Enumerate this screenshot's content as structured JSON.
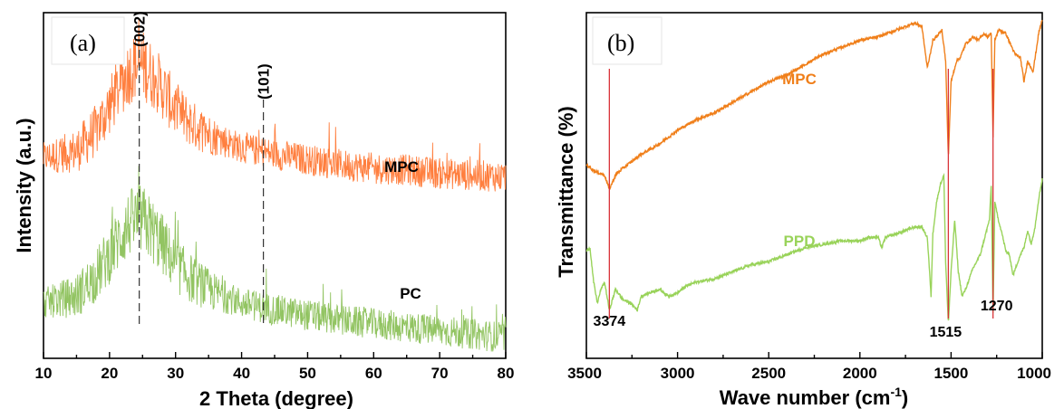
{
  "chart_data": [
    {
      "type": "line",
      "panel_label": "(a)",
      "xlabel": "2 Theta (degree)",
      "ylabel": "Intensity (a.u.)",
      "xlim": [
        10,
        80
      ],
      "xticks": [
        "10",
        "20",
        "30",
        "40",
        "50",
        "60",
        "70",
        "80"
      ],
      "yticks_shown": false,
      "peak_markers": [
        {
          "x": 24.5,
          "label": "(002)"
        },
        {
          "x": 43.3,
          "label": "(101)"
        }
      ],
      "series": [
        {
          "name": "MPC",
          "color": "#ff7f3f",
          "x": [
            10,
            15,
            18,
            20,
            22,
            23,
            24,
            25,
            26,
            28,
            30,
            33,
            36,
            40,
            45,
            50,
            55,
            60,
            65,
            70,
            75,
            80
          ],
          "y": [
            0.58,
            0.6,
            0.66,
            0.73,
            0.8,
            0.83,
            0.85,
            0.85,
            0.83,
            0.78,
            0.72,
            0.67,
            0.64,
            0.61,
            0.59,
            0.575,
            0.56,
            0.55,
            0.545,
            0.535,
            0.53,
            0.525
          ]
        },
        {
          "name": "PC",
          "color": "#92c462",
          "x": [
            10,
            15,
            18,
            20,
            22,
            23,
            24,
            25,
            26,
            28,
            30,
            33,
            36,
            40,
            45,
            50,
            55,
            60,
            65,
            70,
            75,
            80
          ],
          "y": [
            0.16,
            0.18,
            0.24,
            0.3,
            0.36,
            0.39,
            0.4,
            0.4,
            0.38,
            0.33,
            0.27,
            0.22,
            0.19,
            0.16,
            0.14,
            0.125,
            0.11,
            0.1,
            0.09,
            0.08,
            0.07,
            0.06
          ]
        }
      ]
    },
    {
      "type": "line",
      "panel_label": "(b)",
      "xlabel": "Wave number (cm",
      "xlabel_sup": "-1",
      "xlabel_close": ")",
      "ylabel": "Transmittance (%)",
      "xlim": [
        3500,
        1000
      ],
      "xticks": [
        "3500",
        "3000",
        "2500",
        "2000",
        "1500",
        "1000"
      ],
      "yticks_shown": false,
      "annotations": [
        {
          "x": 3374,
          "label": "3374"
        },
        {
          "x": 1515,
          "label": "1515"
        },
        {
          "x": 1270,
          "label": "1270"
        }
      ],
      "series": [
        {
          "name": "MPC",
          "color": "#f07f1a",
          "x": [
            3500,
            3450,
            3400,
            3374,
            3340,
            3300,
            3200,
            3100,
            3000,
            2900,
            2800,
            2700,
            2600,
            2500,
            2400,
            2300,
            2200,
            2100,
            2000,
            1900,
            1800,
            1700,
            1660,
            1630,
            1600,
            1580,
            1550,
            1530,
            1515,
            1500,
            1470,
            1450,
            1420,
            1400,
            1380,
            1350,
            1320,
            1300,
            1280,
            1270,
            1260,
            1240,
            1200,
            1150,
            1120,
            1100,
            1080,
            1050,
            1020,
            1000
          ],
          "y": [
            0.56,
            0.54,
            0.53,
            0.49,
            0.53,
            0.55,
            0.59,
            0.62,
            0.66,
            0.69,
            0.71,
            0.74,
            0.77,
            0.8,
            0.82,
            0.85,
            0.88,
            0.9,
            0.92,
            0.93,
            0.95,
            0.97,
            0.96,
            0.84,
            0.92,
            0.93,
            0.95,
            0.86,
            0.58,
            0.8,
            0.86,
            0.87,
            0.91,
            0.92,
            0.93,
            0.92,
            0.94,
            0.93,
            0.94,
            0.64,
            0.92,
            0.95,
            0.94,
            0.88,
            0.87,
            0.8,
            0.86,
            0.83,
            0.94,
            0.98
          ]
        },
        {
          "name": "PPD",
          "color": "#99d35a",
          "x": [
            3500,
            3480,
            3460,
            3440,
            3420,
            3400,
            3374,
            3340,
            3300,
            3260,
            3220,
            3200,
            3150,
            3100,
            3050,
            3000,
            2950,
            2900,
            2800,
            2700,
            2600,
            2500,
            2400,
            2300,
            2200,
            2100,
            2000,
            1950,
            1900,
            1880,
            1860,
            1800,
            1750,
            1700,
            1660,
            1630,
            1610,
            1600,
            1580,
            1560,
            1540,
            1530,
            1515,
            1500,
            1480,
            1460,
            1440,
            1420,
            1400,
            1380,
            1360,
            1340,
            1320,
            1300,
            1290,
            1280,
            1270,
            1260,
            1240,
            1220,
            1200,
            1180,
            1160,
            1140,
            1120,
            1100,
            1080,
            1060,
            1040,
            1020,
            1000
          ],
          "y": [
            0.31,
            0.32,
            0.22,
            0.16,
            0.2,
            0.22,
            0.14,
            0.2,
            0.17,
            0.16,
            0.14,
            0.18,
            0.19,
            0.2,
            0.18,
            0.19,
            0.21,
            0.22,
            0.23,
            0.25,
            0.27,
            0.28,
            0.3,
            0.32,
            0.33,
            0.34,
            0.34,
            0.35,
            0.35,
            0.32,
            0.35,
            0.36,
            0.37,
            0.38,
            0.38,
            0.35,
            0.18,
            0.36,
            0.45,
            0.5,
            0.53,
            0.28,
            0.1,
            0.25,
            0.4,
            0.25,
            0.18,
            0.2,
            0.23,
            0.26,
            0.28,
            0.3,
            0.34,
            0.38,
            0.4,
            0.5,
            0.13,
            0.45,
            0.4,
            0.36,
            0.31,
            0.3,
            0.24,
            0.27,
            0.3,
            0.32,
            0.37,
            0.33,
            0.38,
            0.46,
            0.52
          ]
        }
      ]
    }
  ]
}
